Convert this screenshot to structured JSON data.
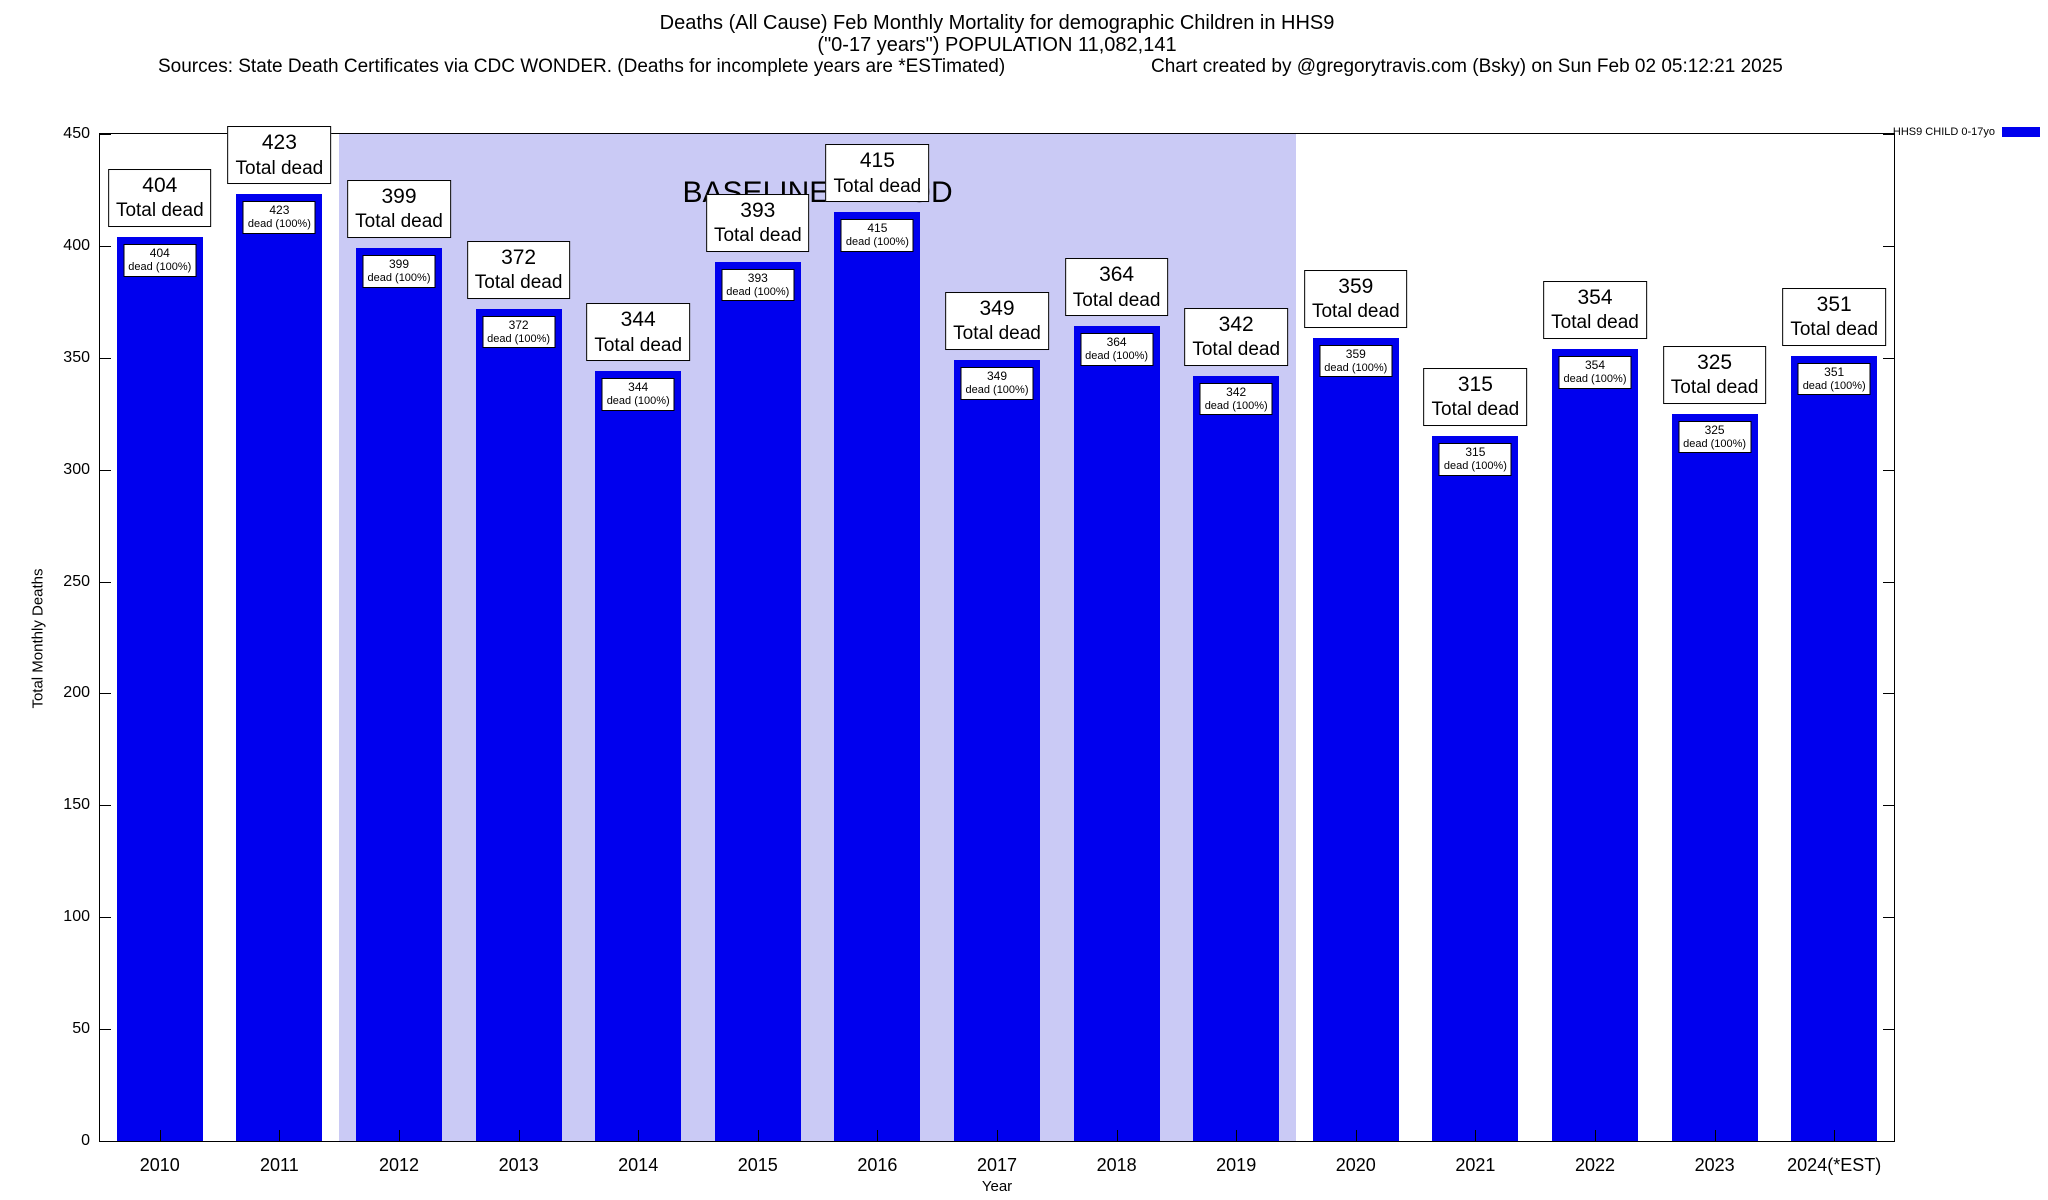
{
  "header": {
    "title_line1": "Deaths (All Cause) Feb Monthly Mortality for demographic Children in HHS9",
    "title_line2": "(\"0-17 years\") POPULATION 11,082,141",
    "sources": "Sources: State Death Certificates via CDC WONDER. (Deaths for incomplete years are *ESTimated)",
    "credit": "Chart created by @gregorytravis.com (Bsky) on Sun Feb 02 05:12:21 2025"
  },
  "legend": {
    "label": "HHS9 CHILD 0-17yo",
    "color": "#0000ee"
  },
  "chart_data": {
    "type": "bar",
    "title": "Deaths (All Cause) Feb Monthly Mortality for demographic Children in HHS9",
    "subtitle": "(\"0-17 years\") POPULATION 11,082,141",
    "categories": [
      "2010",
      "2011",
      "2012",
      "2013",
      "2014",
      "2015",
      "2016",
      "2017",
      "2018",
      "2019",
      "2020",
      "2021",
      "2022",
      "2023",
      "2024(*EST)"
    ],
    "values": [
      404,
      423,
      399,
      372,
      344,
      393,
      415,
      349,
      364,
      342,
      359,
      315,
      354,
      325,
      351
    ],
    "bar_label_suffix": "Total dead",
    "inner_label_suffix": "dead (100%)",
    "xlabel": "Year",
    "ylabel": "Total Monthly Deaths",
    "ylim": [
      0,
      450
    ],
    "ytick_step": 50,
    "yticks": [
      0,
      50,
      100,
      150,
      200,
      250,
      300,
      350,
      400,
      450
    ],
    "bar_color": "#0000ee",
    "grid": false,
    "legend_position": "top-right",
    "baseline": {
      "label": "BASELINE PERIOD",
      "start_category": "2012",
      "end_category": "2019",
      "color": "#cacaf5"
    }
  }
}
